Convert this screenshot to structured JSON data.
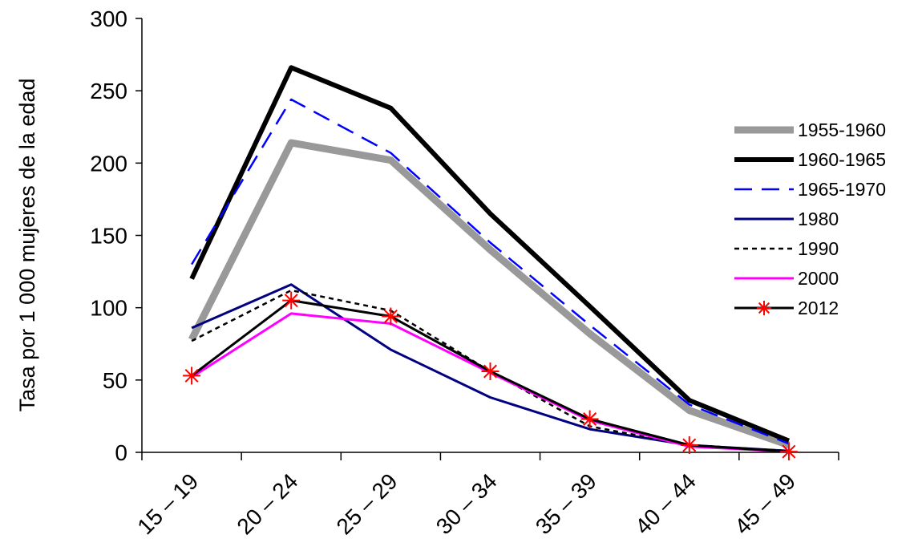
{
  "chart_data": {
    "type": "line",
    "title": "",
    "xlabel": "",
    "ylabel": "Tasa por 1 000 mujeres de la edad",
    "categories": [
      "15 – 19",
      "20 – 24",
      "25 – 29",
      "30 – 34",
      "35 – 39",
      "40 – 44",
      "45 – 49"
    ],
    "ylim": [
      0,
      300
    ],
    "yticks": [
      0,
      50,
      100,
      150,
      200,
      250,
      300
    ],
    "grid": false,
    "legend_position": "right",
    "series": [
      {
        "name": "1955-1960",
        "values": [
          78,
          214,
          202,
          140,
          82,
          29,
          5
        ],
        "color": "#999999",
        "style": "solid-thick"
      },
      {
        "name": "1960-1965",
        "values": [
          120,
          266,
          238,
          165,
          101,
          36,
          8
        ],
        "color": "#000000",
        "style": "solid-thick"
      },
      {
        "name": "1965-1970",
        "values": [
          130,
          244,
          207,
          145,
          88,
          33,
          6
        ],
        "color": "#0000FF",
        "style": "dashed"
      },
      {
        "name": "1980",
        "values": [
          86,
          116,
          71,
          38,
          16,
          5,
          1
        ],
        "color": "#000080",
        "style": "solid"
      },
      {
        "name": "1990",
        "values": [
          77,
          112,
          98,
          56,
          18,
          5,
          1
        ],
        "color": "#000000",
        "style": "dotted"
      },
      {
        "name": "2000",
        "values": [
          52,
          96,
          89,
          55,
          22,
          4,
          0.5
        ],
        "color": "#FF00FF",
        "style": "solid"
      },
      {
        "name": "2012",
        "values": [
          53,
          105,
          94,
          56,
          23,
          5,
          0.5
        ],
        "color": "#000000",
        "style": "solid-star",
        "marker_color": "#FF0000"
      }
    ]
  }
}
